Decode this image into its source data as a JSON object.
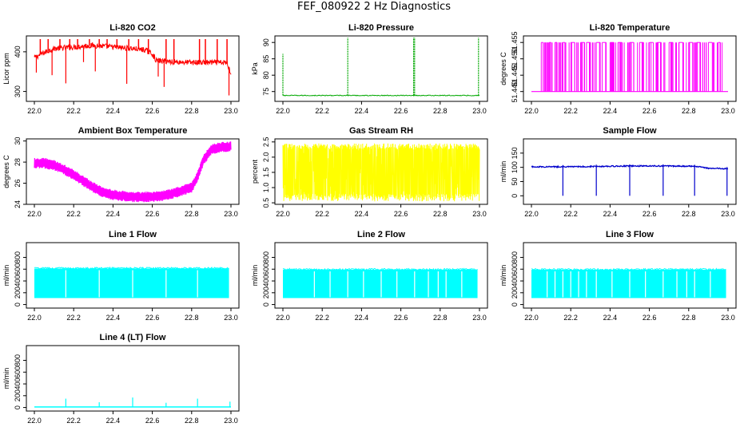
{
  "title": "FEF_080922  2 Hz Diagnostics",
  "chart_data": [
    {
      "id": "co2",
      "type": "line",
      "title": "Li-820 CO2",
      "ylabel": "Licor ppm",
      "color": "#ff0000",
      "xlim": [
        22.0,
        23.0
      ],
      "ylim": [
        275,
        440
      ],
      "yticks": [
        300,
        400
      ],
      "yticklabels": [
        "300",
        "400"
      ],
      "xticks": [
        22.0,
        22.2,
        22.4,
        22.6,
        22.8,
        23.0
      ],
      "xticklabels": [
        "22.0",
        "22.2",
        "22.4",
        "22.6",
        "22.8",
        "23.0"
      ],
      "series": [
        {
          "x": [
            22.0,
            22.05,
            22.1,
            22.2,
            22.3,
            22.4,
            22.5,
            22.56,
            22.6,
            22.62,
            22.7,
            22.8,
            22.9,
            22.98,
            23.0
          ],
          "y": [
            385,
            398,
            408,
            412,
            416,
            412,
            408,
            405,
            395,
            378,
            375,
            373,
            373,
            372,
            345
          ]
        }
      ],
      "spikes_up": [
        22.03,
        22.07,
        22.13,
        22.18,
        22.22,
        22.28,
        22.33,
        22.37,
        22.42,
        22.48,
        22.53,
        22.58,
        22.67,
        22.71,
        22.84,
        22.87,
        22.93,
        22.98
      ],
      "spikes_down": [
        22.01,
        22.09,
        22.16,
        22.25,
        22.31,
        22.47,
        22.63,
        22.66,
        22.99
      ],
      "spike_top": 432,
      "spike_bottom": 290
    },
    {
      "id": "pressure",
      "type": "line",
      "title": "Li-820 Pressure",
      "ylabel": "kPa",
      "color": "#00a800",
      "xlim": [
        22.0,
        23.0
      ],
      "ylim": [
        72,
        92
      ],
      "yticks": [
        75,
        80,
        85,
        90
      ],
      "yticklabels": [
        "75",
        "80",
        "85",
        "90"
      ],
      "xticks": [
        22.0,
        22.2,
        22.4,
        22.6,
        22.8,
        23.0
      ],
      "xticklabels": [
        "22.0",
        "22.2",
        "22.4",
        "22.6",
        "22.8",
        "23.0"
      ],
      "baseline": 73.8,
      "spikes_up": [
        22.0,
        22.33,
        22.665,
        22.67,
        22.995
      ],
      "spike_top": 91.5
    },
    {
      "id": "licor-temp",
      "type": "line",
      "title": "Li-820 Temperature",
      "ylabel": "degrees C",
      "color": "#ff00ff",
      "xlim": [
        22.0,
        23.0
      ],
      "ylim": [
        51.437,
        51.457
      ],
      "yticks": [
        51.44,
        51.445,
        51.45,
        51.455
      ],
      "yticklabels": [
        "51.440",
        "51.445",
        "51.450",
        "51.455"
      ],
      "xticks": [
        22.0,
        22.2,
        22.4,
        22.6,
        22.8,
        23.0
      ],
      "xticklabels": [
        "22.0",
        "22.2",
        "22.4",
        "22.6",
        "22.8",
        "23.0"
      ],
      "low": 51.44,
      "high": 51.455,
      "toggles": [
        22.05,
        22.06,
        22.09,
        22.1,
        22.12,
        22.13,
        22.16,
        22.17,
        22.2,
        22.22,
        22.25,
        22.27,
        22.28,
        22.3,
        22.33,
        22.35,
        22.36,
        22.38,
        22.4,
        22.42,
        22.44,
        22.46,
        22.5,
        22.52,
        22.55,
        22.57,
        22.6,
        22.62,
        22.64,
        22.66,
        22.7,
        22.72,
        22.75,
        22.77,
        22.8,
        22.82,
        22.84,
        22.86,
        22.9,
        22.92,
        22.95,
        22.96
      ]
    },
    {
      "id": "box-temp",
      "type": "line",
      "title": "Ambient Box Temperature",
      "ylabel": "degrees C",
      "color": "#ff00ff",
      "xlim": [
        22.0,
        23.0
      ],
      "ylim": [
        24,
        30.2
      ],
      "yticks": [
        24,
        26,
        28,
        30
      ],
      "yticklabels": [
        "24",
        "26",
        "28",
        "30"
      ],
      "xticks": [
        22.0,
        22.2,
        22.4,
        22.6,
        22.8,
        23.0
      ],
      "xticklabels": [
        "22.0",
        "22.2",
        "22.4",
        "22.6",
        "22.8",
        "23.0"
      ],
      "band": 0.5,
      "series": [
        {
          "x": [
            22.0,
            22.05,
            22.1,
            22.15,
            22.2,
            22.25,
            22.3,
            22.35,
            22.4,
            22.45,
            22.5,
            22.55,
            22.6,
            22.65,
            22.7,
            22.75,
            22.8,
            22.83,
            22.86,
            22.9,
            22.95,
            23.0
          ],
          "y": [
            27.9,
            27.9,
            27.7,
            27.3,
            26.8,
            26.2,
            25.6,
            25.1,
            24.9,
            24.8,
            24.7,
            24.7,
            24.7,
            24.8,
            25.0,
            25.3,
            25.6,
            26.6,
            28.2,
            29.2,
            29.4,
            29.5
          ]
        }
      ]
    },
    {
      "id": "rh",
      "type": "line",
      "title": "Gas Stream RH",
      "ylabel": "percent",
      "color": "#ffff00",
      "xlim": [
        22.0,
        23.0
      ],
      "ylim": [
        0.45,
        2.6
      ],
      "yticks": [
        0.5,
        1.0,
        1.5,
        2.0,
        2.5
      ],
      "yticklabels": [
        "0.5",
        "1.0",
        "1.5",
        "2.0",
        "2.5"
      ],
      "xticks": [
        22.0,
        22.2,
        22.4,
        22.6,
        22.8,
        23.0
      ],
      "xticklabels": [
        "22.0",
        "22.2",
        "22.4",
        "22.6",
        "22.8",
        "23.0"
      ],
      "band_top": 2.45,
      "band_bottom": 0.55,
      "band_core_top": 2.25,
      "band_core_bottom": 0.8
    },
    {
      "id": "sample-flow",
      "type": "line",
      "title": "Sample Flow",
      "ylabel": "ml/min",
      "color": "#0000cc",
      "xlim": [
        22.0,
        23.0
      ],
      "ylim": [
        -30,
        200
      ],
      "yticks": [
        0,
        50,
        100,
        150
      ],
      "yticklabels": [
        "0",
        "50",
        "100",
        "150"
      ],
      "xticks": [
        22.0,
        22.2,
        22.4,
        22.6,
        22.8,
        23.0
      ],
      "xticklabels": [
        "22.0",
        "22.2",
        "22.4",
        "22.6",
        "22.8",
        "23.0"
      ],
      "series": [
        {
          "x": [
            22.0,
            22.2,
            22.4,
            22.6,
            22.8,
            22.86,
            22.9,
            23.0
          ],
          "y": [
            102,
            102,
            104,
            105,
            104,
            102,
            97,
            95
          ]
        }
      ],
      "dropouts": [
        22.16,
        22.33,
        22.5,
        22.67,
        22.83,
        22.995
      ]
    },
    {
      "id": "line1",
      "type": "line",
      "title": "Line 1 Flow",
      "ylabel": "ml/min",
      "color": "#00ffff",
      "xlim": [
        22.0,
        23.0
      ],
      "ylim": [
        -60,
        1050
      ],
      "yticks": [
        0,
        200,
        400,
        600,
        800
      ],
      "yticklabels": [
        "0",
        "200",
        "400",
        "600",
        "800"
      ],
      "xticks": [
        22.0,
        22.2,
        22.4,
        22.6,
        22.8,
        23.0
      ],
      "xticklabels": [
        "22.0",
        "22.2",
        "22.4",
        "22.6",
        "22.8",
        "23.0"
      ],
      "band_top": 610,
      "band_bottom": 110,
      "band_start": 22.0,
      "band_end": 22.99,
      "gaps": [
        22.16,
        22.33,
        22.5,
        22.67,
        22.83
      ]
    },
    {
      "id": "line2",
      "type": "line",
      "title": "Line 2 Flow",
      "ylabel": "ml/min",
      "color": "#00ffff",
      "xlim": [
        22.0,
        23.0
      ],
      "ylim": [
        -60,
        1050
      ],
      "yticks": [
        0,
        200,
        400,
        600,
        800
      ],
      "yticklabels": [
        "0",
        "200",
        "400",
        "600",
        "800"
      ],
      "xticks": [
        22.0,
        22.2,
        22.4,
        22.6,
        22.8,
        23.0
      ],
      "xticklabels": [
        "22.0",
        "22.2",
        "22.4",
        "22.6",
        "22.8",
        "23.0"
      ],
      "band_top": 590,
      "band_bottom": 110,
      "band_start": 22.0,
      "band_end": 22.99,
      "gaps": [
        22.16,
        22.24,
        22.33,
        22.41,
        22.5,
        22.58,
        22.67,
        22.74,
        22.79,
        22.83,
        22.91
      ]
    },
    {
      "id": "line3",
      "type": "line",
      "title": "Line 3 Flow",
      "ylabel": "ml/min",
      "color": "#00ffff",
      "xlim": [
        22.0,
        23.0
      ],
      "ylim": [
        -60,
        1050
      ],
      "yticks": [
        0,
        200,
        400,
        600,
        800
      ],
      "yticklabels": [
        "0",
        "200",
        "400",
        "600",
        "800"
      ],
      "xticks": [
        22.0,
        22.2,
        22.4,
        22.6,
        22.8,
        23.0
      ],
      "xticklabels": [
        "22.0",
        "22.2",
        "22.4",
        "22.6",
        "22.8",
        "23.0"
      ],
      "band_top": 590,
      "band_bottom": 110,
      "band_start": 22.0,
      "band_end": 22.99,
      "gaps": [
        22.08,
        22.12,
        22.16,
        22.2,
        22.24,
        22.28,
        22.33,
        22.41,
        22.5,
        22.58,
        22.67,
        22.74,
        22.79,
        22.83,
        22.91
      ]
    },
    {
      "id": "line4",
      "type": "line",
      "title": "Line 4 (LT) Flow",
      "ylabel": "ml/min",
      "color": "#00ffff",
      "xlim": [
        22.0,
        23.0
      ],
      "ylim": [
        -60,
        1050
      ],
      "yticks": [
        0,
        200,
        400,
        600,
        800
      ],
      "yticklabels": [
        "0",
        "200",
        "400",
        "600",
        "800"
      ],
      "xticks": [
        22.0,
        22.2,
        22.4,
        22.6,
        22.8,
        23.0
      ],
      "xticklabels": [
        "22.0",
        "22.2",
        "22.4",
        "22.6",
        "22.8",
        "23.0"
      ],
      "baseline": 10,
      "spikes_up": [
        22.16,
        22.33,
        22.5,
        22.67,
        22.83,
        22.995
      ],
      "spike_heights": [
        140,
        80,
        160,
        70,
        140,
        90
      ]
    }
  ]
}
